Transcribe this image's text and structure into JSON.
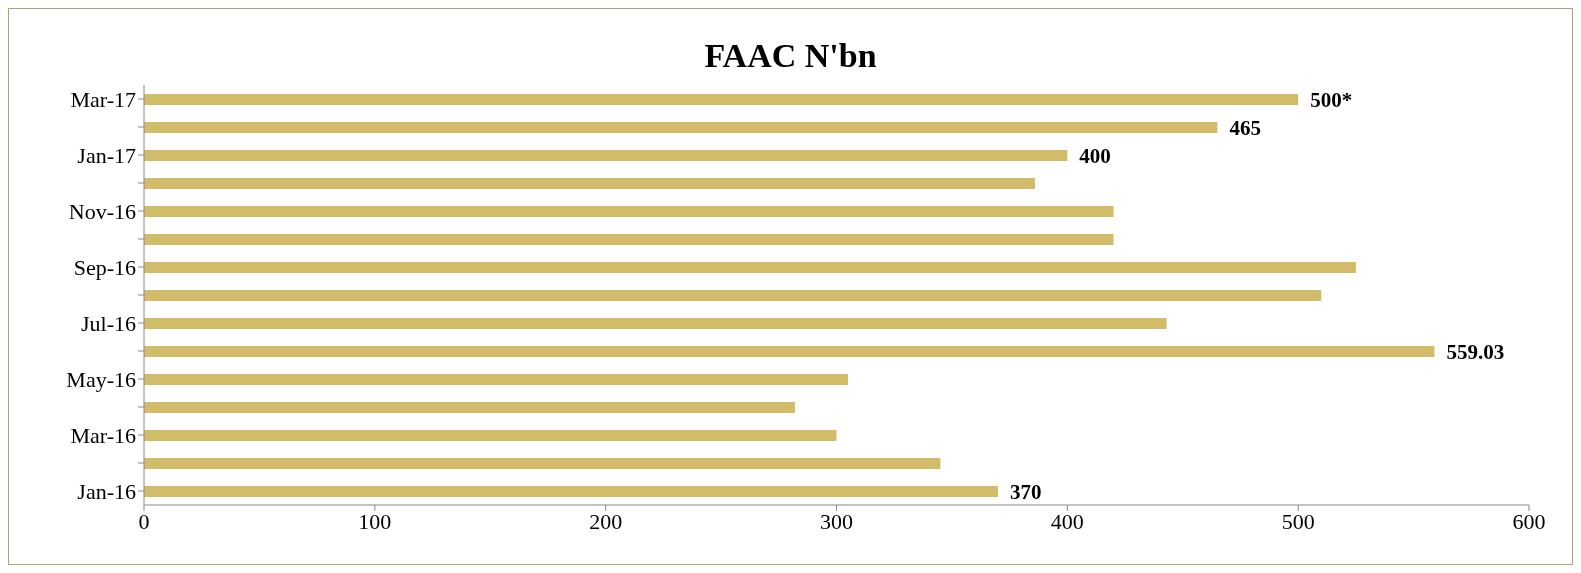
{
  "chart_data": {
    "type": "bar",
    "orientation": "horizontal",
    "title": "FAAC N'bn",
    "categories": [
      "Mar-17",
      null,
      "Jan-17",
      null,
      "Nov-16",
      null,
      "Sep-16",
      null,
      "Jul-16",
      null,
      "May-16",
      null,
      "Mar-16",
      null,
      "Jan-16"
    ],
    "values": [
      500,
      465,
      400,
      386,
      420,
      420,
      525,
      510,
      443,
      559.03,
      305,
      282,
      300,
      345,
      370
    ],
    "value_labels": [
      "500*",
      "465",
      "400",
      null,
      null,
      null,
      null,
      null,
      null,
      "559.03",
      null,
      null,
      null,
      null,
      "370"
    ],
    "color": "#d2bb69",
    "xlim": [
      0,
      600
    ],
    "xticks": [
      0,
      100,
      200,
      300,
      400,
      500,
      600
    ]
  }
}
